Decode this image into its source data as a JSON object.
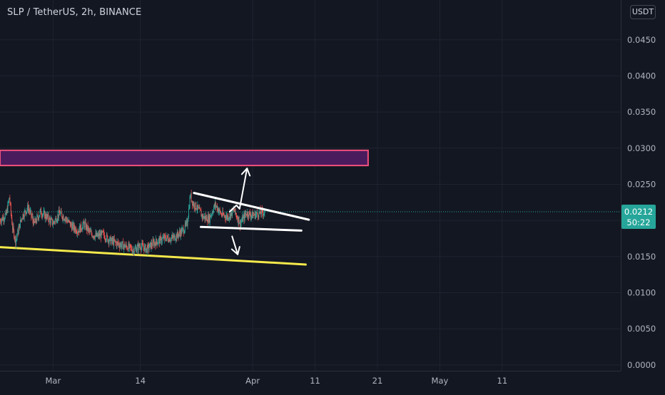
{
  "header": {
    "title": "SLP / TetherUS, 2h, BINANCE",
    "currency_button": "USDT"
  },
  "chart_data": {
    "type": "candlestick",
    "symbol": "SLP / TetherUS",
    "interval": "2h",
    "exchange": "BINANCE",
    "y_ticks": [
      "0.0450",
      "0.0400",
      "0.0350",
      "0.0300",
      "0.0250",
      "0.0200",
      "0.0150",
      "0.0100",
      "0.0050",
      "0.0000"
    ],
    "y_tick_values": [
      0.045,
      0.04,
      0.035,
      0.03,
      0.025,
      0.02,
      0.015,
      0.01,
      0.005,
      0.0
    ],
    "x_ticks": [
      {
        "label": "Mar",
        "day": 29
      },
      {
        "label": "14",
        "day": 43
      },
      {
        "label": "Apr",
        "day": 61
      },
      {
        "label": "11",
        "day": 71
      },
      {
        "label": "21",
        "day": 81
      },
      {
        "label": "May",
        "day": 91
      },
      {
        "label": "11",
        "day": 101
      }
    ],
    "x_range_day": [
      20.5,
      120
    ],
    "ylim": [
      -0.0008,
      0.0505
    ],
    "price_path": [
      [
        20.5,
        0.02
      ],
      [
        21.5,
        0.0208
      ],
      [
        22,
        0.0232
      ],
      [
        22.5,
        0.019
      ],
      [
        23,
        0.0172
      ],
      [
        24,
        0.0205
      ],
      [
        25,
        0.0218
      ],
      [
        26,
        0.0195
      ],
      [
        27,
        0.0212
      ],
      [
        28,
        0.0205
      ],
      [
        29,
        0.0196
      ],
      [
        30,
        0.021
      ],
      [
        31,
        0.0203
      ],
      [
        32,
        0.0192
      ],
      [
        33,
        0.0186
      ],
      [
        34,
        0.0195
      ],
      [
        35,
        0.0182
      ],
      [
        36,
        0.0178
      ],
      [
        37,
        0.0181
      ],
      [
        38,
        0.0173
      ],
      [
        39,
        0.0169
      ],
      [
        40,
        0.0166
      ],
      [
        41,
        0.0163
      ],
      [
        42,
        0.0159
      ],
      [
        43,
        0.0165
      ],
      [
        44,
        0.016
      ],
      [
        45,
        0.0168
      ],
      [
        46,
        0.0172
      ],
      [
        47,
        0.0176
      ],
      [
        48,
        0.0175
      ],
      [
        49,
        0.018
      ],
      [
        50,
        0.0188
      ],
      [
        50.5,
        0.0196
      ],
      [
        51,
        0.0235
      ],
      [
        51.5,
        0.0222
      ],
      [
        52,
        0.0219
      ],
      [
        53,
        0.0205
      ],
      [
        54,
        0.0202
      ],
      [
        55,
        0.0222
      ],
      [
        56,
        0.0208
      ],
      [
        57,
        0.0205
      ],
      [
        58,
        0.0214
      ],
      [
        59,
        0.0196
      ],
      [
        60,
        0.021
      ],
      [
        61,
        0.0207
      ],
      [
        62,
        0.021
      ],
      [
        63,
        0.0212
      ]
    ],
    "last_price": "0.0212",
    "countdown": "50:22",
    "last_price_value": 0.0212,
    "colors": {
      "background": "#131722",
      "grid": "#1f2330",
      "up": "#26a69a",
      "down": "#ef5350",
      "axis_text": "#b2b5be",
      "last_price_badge": "#26a69a",
      "resistance_zone_fill": "#4a1c5e",
      "resistance_zone_border": "#f2507d",
      "support_line": "#f5e94b",
      "pattern_lines": "#ffffff"
    },
    "drawings": {
      "resistance_zone": {
        "day_from": 20.5,
        "day_to": 79.5,
        "price_low": 0.0276,
        "price_high": 0.0297
      },
      "support_line": {
        "day_from": 20.5,
        "price_from": 0.0163,
        "day_to": 69.5,
        "price_to": 0.0139
      },
      "wedge_upper": {
        "day_from": 51.6,
        "price_from": 0.0238,
        "day_to": 70,
        "price_to": 0.0201
      },
      "wedge_lower": {
        "day_from": 52.7,
        "price_from": 0.0191,
        "day_to": 68.8,
        "price_to": 0.0186
      },
      "arrow_up": [
        [
          57.3,
          0.0212
        ],
        [
          58.4,
          0.0221
        ],
        [
          58.9,
          0.0216
        ],
        [
          60.1,
          0.0272
        ]
      ],
      "arrow_down": [
        [
          57.7,
          0.0178
        ],
        [
          58.6,
          0.0153
        ]
      ]
    }
  }
}
